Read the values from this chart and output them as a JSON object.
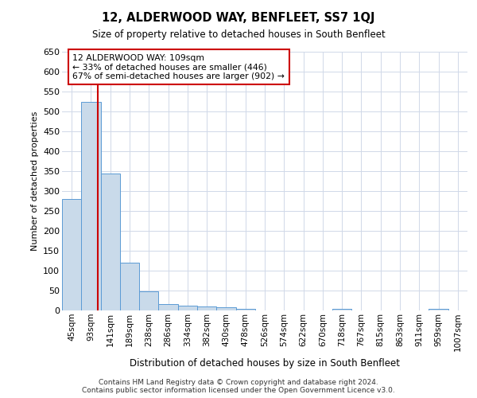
{
  "title": "12, ALDERWOOD WAY, BENFLEET, SS7 1QJ",
  "subtitle": "Size of property relative to detached houses in South Benfleet",
  "xlabel": "Distribution of detached houses by size in South Benfleet",
  "ylabel": "Number of detached properties",
  "bin_labels": [
    "45sqm",
    "93sqm",
    "141sqm",
    "189sqm",
    "238sqm",
    "286sqm",
    "334sqm",
    "382sqm",
    "430sqm",
    "478sqm",
    "526sqm",
    "574sqm",
    "622sqm",
    "670sqm",
    "718sqm",
    "767sqm",
    "815sqm",
    "863sqm",
    "911sqm",
    "959sqm",
    "1007sqm"
  ],
  "bar_values": [
    280,
    525,
    345,
    120,
    48,
    17,
    12,
    10,
    8,
    5,
    0,
    0,
    0,
    0,
    5,
    0,
    0,
    0,
    0,
    5,
    0
  ],
  "bar_color": "#c9daea",
  "bar_edge_color": "#5b9bd5",
  "property_sqm": 109,
  "line_color": "#cc0000",
  "annotation_line1": "12 ALDERWOOD WAY: 109sqm",
  "annotation_line2": "← 33% of detached houses are smaller (446)",
  "annotation_line3": "67% of semi-detached houses are larger (902) →",
  "annotation_box_color": "#ffffff",
  "annotation_box_edge": "#cc0000",
  "ylim": [
    0,
    650
  ],
  "yticks": [
    0,
    50,
    100,
    150,
    200,
    250,
    300,
    350,
    400,
    450,
    500,
    550,
    600,
    650
  ],
  "footer_line1": "Contains HM Land Registry data © Crown copyright and database right 2024.",
  "footer_line2": "Contains public sector information licensed under the Open Government Licence v3.0.",
  "background_color": "#ffffff",
  "grid_color": "#d0d8e8"
}
